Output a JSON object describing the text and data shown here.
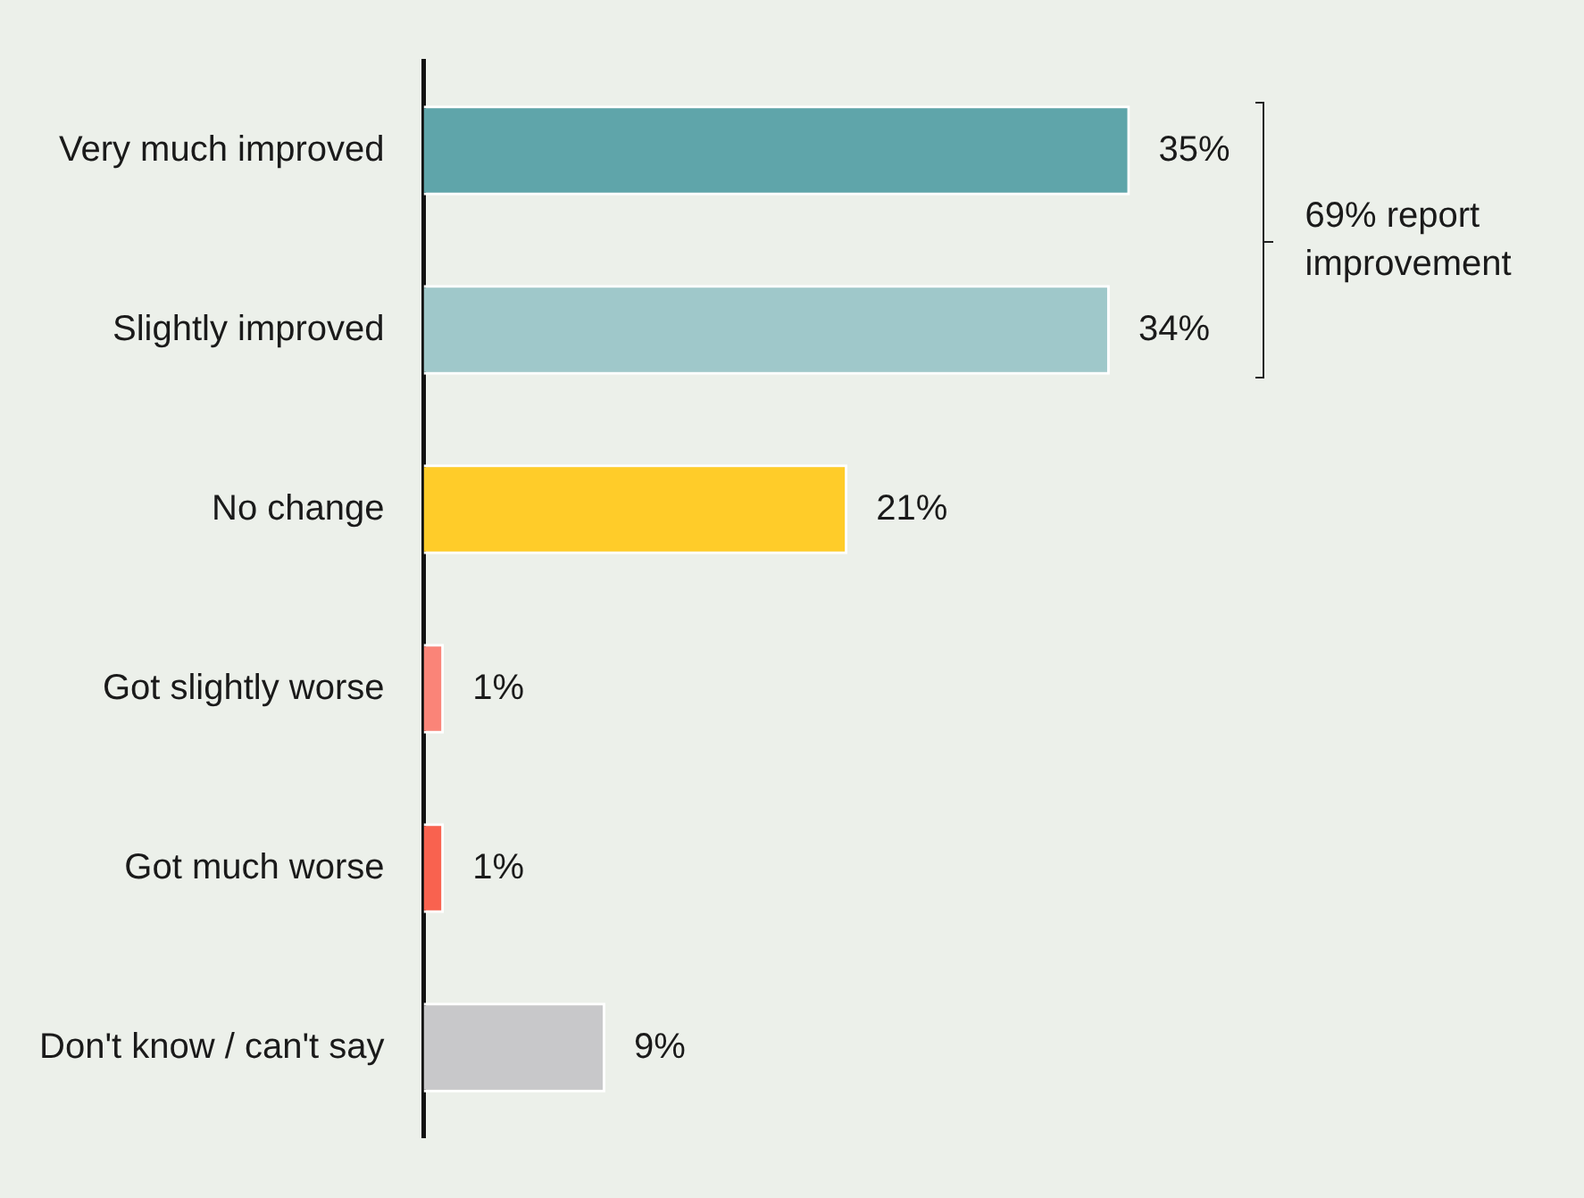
{
  "chart_data": {
    "type": "bar",
    "orientation": "horizontal",
    "categories": [
      "Very much improved",
      "Slightly improved",
      "No change",
      "Got slightly worse",
      "Got much worse",
      "Don't know / can't say"
    ],
    "values": [
      35,
      34,
      21,
      1,
      1,
      9
    ],
    "colors": [
      "#5fa5aa",
      "#9fc8ca",
      "#ffcc29",
      "#fa8478",
      "#f9624f",
      "#c8c8ca"
    ],
    "value_labels": [
      "35%",
      "34%",
      "21%",
      "1%",
      "1%",
      "9%"
    ],
    "xlim": [
      0,
      57.5
    ],
    "tick_labels": "y",
    "annotations": [
      "69% report improvement"
    ]
  }
}
